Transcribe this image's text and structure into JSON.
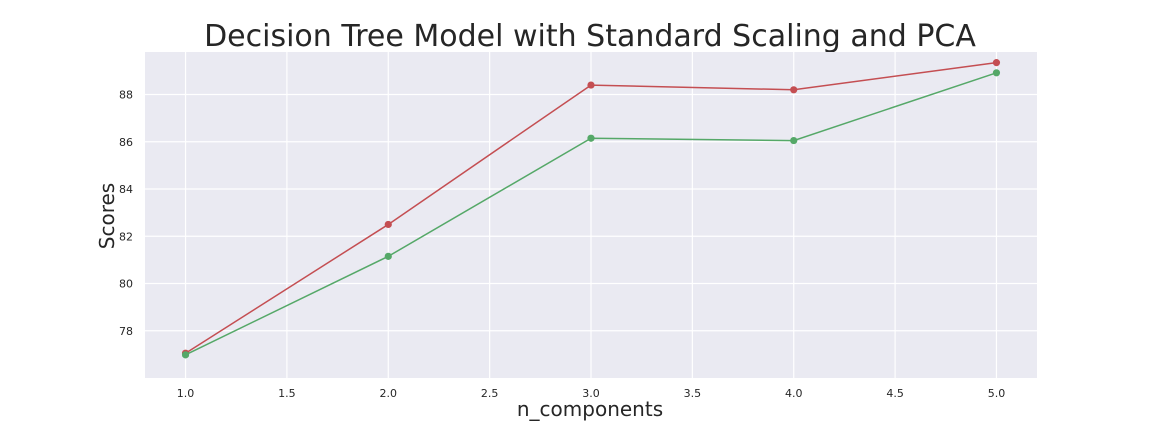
{
  "chart_data": {
    "type": "line",
    "title": "Decision Tree Model with Standard Scaling and PCA",
    "xlabel": "n_components",
    "ylabel": "Scores",
    "x": [
      1.0,
      2.0,
      3.0,
      4.0,
      5.0
    ],
    "xlim": [
      0.8,
      5.2
    ],
    "ylim": [
      76.0,
      89.8
    ],
    "xticks": [
      "1.0",
      "1.5",
      "2.0",
      "2.5",
      "3.0",
      "3.5",
      "4.0",
      "4.5",
      "5.0"
    ],
    "yticks": [
      "78",
      "80",
      "82",
      "84",
      "86",
      "88"
    ],
    "grid": true,
    "background": "#eaeaf2",
    "series": [
      {
        "color": "#c44e52",
        "values": [
          77.05,
          82.5,
          88.4,
          88.2,
          89.35
        ]
      },
      {
        "color": "#55a868",
        "values": [
          76.98,
          81.15,
          86.15,
          86.05,
          88.92
        ]
      }
    ]
  }
}
